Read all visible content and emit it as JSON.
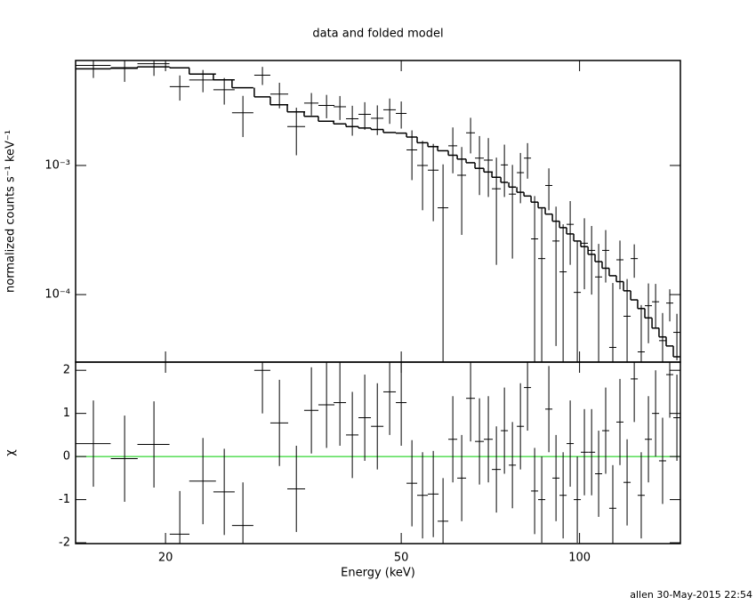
{
  "title": "data and folded model",
  "footer": "allen 30-May-2015 22:54",
  "chart_data": [
    {
      "type": "errorbar",
      "ylabel": "normalized counts s⁻¹ keV⁻¹",
      "xlog": true,
      "ylog": true,
      "xlim": [
        14.1,
        148
      ],
      "ylim": [
        3e-05,
        0.0065
      ],
      "xticks": [
        20,
        50,
        100
      ],
      "yticks": [
        {
          "value": 0.001,
          "label": "10⁻³"
        },
        {
          "value": 0.0001,
          "label": "10⁻⁴"
        }
      ],
      "color": "#000000",
      "model_color": "#000000",
      "x": [
        15.11,
        17.06,
        19.12,
        21.14,
        23.13,
        25.13,
        27.02,
        29.15,
        31.14,
        33.26,
        35.26,
        37.4,
        39.39,
        41.34,
        43.39,
        45.56,
        47.8,
        50,
        52.12,
        54.32,
        56.63,
        58.82,
        61.1,
        63.25,
        65.47,
        67.77,
        70.15,
        72.38,
        74.67,
        77.03,
        79.47,
        81.69,
        83.98,
        86.33,
        88.75,
        91.25,
        93.81,
        96.43,
        99.13,
        101.9,
        104.8,
        107.7,
        110.7,
        113.8,
        117,
        120.3,
        123.7,
        127.1,
        130.7,
        134.4,
        138.1,
        142,
        146
      ],
      "xerr": [
        1.05,
        0.89,
        1.19,
        0.81,
        1.2,
        1.04,
        1.12,
        0.91,
        1.08,
        1.15,
        0.98,
        1.17,
        0.95,
        1,
        1.05,
        1.1,
        1.16,
        1.04,
        1.08,
        1.13,
        1.18,
        1.22,
        1.06,
        1.09,
        1.13,
        1.17,
        1.21,
        1.25,
        1.03,
        1.07,
        1.1,
        1.13,
        1.16,
        1.2,
        1.23,
        1.26,
        1.3,
        1.34,
        1.37,
        1.41,
        1.45,
        1.49,
        1.53,
        1.58,
        1.62,
        1.67,
        1.71,
        1.76,
        1.81,
        1.86,
        1.91,
        1.97,
        2.02
      ],
      "values": [
        0.00596,
        0.00564,
        0.00614,
        0.00408,
        0.00459,
        0.00386,
        0.00256,
        0.005,
        0.00357,
        0.002,
        0.00304,
        0.00292,
        0.00285,
        0.0023,
        0.00249,
        0.00232,
        0.0027,
        0.00253,
        0.00132,
        0.001,
        0.00092,
        0.00047,
        0.00142,
        0.00084,
        0.00179,
        0.00114,
        0.0011,
        0.00066,
        0.00101,
        0.0006,
        0.00088,
        0.00114,
        0.00027,
        0.00019,
        0.0007,
        0.00026,
        0.00015,
        0.00035,
        0.000104,
        0.00025,
        0.00022,
        0.000137,
        0.00022,
        3.9e-05,
        0.000186,
        6.8e-05,
        0.00019,
        3.6e-05,
        8.2e-05,
        8.8e-05,
        4.4e-05,
        8.6e-05,
        5.1e-05
      ],
      "errors": [
        0.0012,
        0.0012,
        0.0012,
        0.0009,
        0.0009,
        0.0009,
        0.0009,
        0.0008,
        0.0008,
        0.0008,
        0.0006,
        0.0006,
        0.0006,
        0.0006,
        0.0006,
        0.0006,
        0.0006,
        0.0006,
        0.00055,
        0.00055,
        0.00055,
        0.00055,
        0.00055,
        0.00055,
        0.00055,
        0.00055,
        0.00053,
        0.00049,
        0.00044,
        0.00041,
        0.00037,
        0.00035,
        0.00031,
        0.00028,
        0.00025,
        0.00022,
        0.0002,
        0.00018,
        0.000156,
        0.00014,
        0.00012,
        0.00011,
        9.6e-05,
        8.4e-05,
        7.6e-05,
        6.4e-05,
        5.5e-05,
        4.7e-05,
        4e-05,
        3.3e-05,
        2.8e-05,
        2.4e-05,
        2e-05
      ],
      "model": [
        0.0056,
        0.0057,
        0.0058,
        0.0057,
        0.0051,
        0.0046,
        0.004,
        0.0034,
        0.00295,
        0.0026,
        0.0024,
        0.0022,
        0.0021,
        0.002,
        0.00195,
        0.0019,
        0.0018,
        0.00178,
        0.00166,
        0.0015,
        0.0014,
        0.0013,
        0.0012,
        0.00112,
        0.00105,
        0.00095,
        0.00089,
        0.00081,
        0.00074,
        0.00068,
        0.00062,
        0.00058,
        0.00052,
        0.00047,
        0.00042,
        0.00037,
        0.00033,
        0.000295,
        0.00026,
        0.000235,
        0.000205,
        0.00018,
        0.00016,
        0.00014,
        0.000126,
        0.000107,
        9.1e-05,
        7.8e-05,
        6.6e-05,
        5.5e-05,
        4.7e-05,
        4e-05,
        3.3e-05
      ]
    },
    {
      "type": "residual",
      "xlabel": "Energy (keV)",
      "ylabel": "χ",
      "xlog": true,
      "xlim": [
        14.1,
        148
      ],
      "ylim": [
        -2.02,
        2.19
      ],
      "xticks": [
        20,
        50,
        100
      ],
      "yticks": [
        -2,
        -1,
        0,
        1,
        2
      ],
      "color": "#000000",
      "reference": 0,
      "reference_color": "#00cc00",
      "x": [
        15.11,
        17.06,
        19.12,
        21.14,
        23.13,
        25.13,
        27.02,
        29.15,
        31.14,
        33.26,
        35.26,
        37.4,
        39.39,
        41.34,
        43.39,
        45.56,
        47.8,
        50,
        52.12,
        54.32,
        56.63,
        58.82,
        61.1,
        63.25,
        65.47,
        67.77,
        70.15,
        72.38,
        74.67,
        77.03,
        79.47,
        81.69,
        83.98,
        86.33,
        88.75,
        91.25,
        93.81,
        96.43,
        99.13,
        101.9,
        104.8,
        107.7,
        110.7,
        113.8,
        117,
        120.3,
        123.7,
        127.1,
        130.7,
        134.4,
        138.1,
        142,
        146
      ],
      "xerr": [
        1.05,
        0.89,
        1.19,
        0.81,
        1.2,
        1.04,
        1.12,
        0.91,
        1.08,
        1.15,
        0.98,
        1.17,
        0.95,
        1,
        1.05,
        1.1,
        1.16,
        1.04,
        1.08,
        1.13,
        1.18,
        1.22,
        1.06,
        1.09,
        1.13,
        1.17,
        1.21,
        1.25,
        1.03,
        1.07,
        1.1,
        1.13,
        1.16,
        1.2,
        1.23,
        1.26,
        1.3,
        1.34,
        1.37,
        1.41,
        1.45,
        1.49,
        1.53,
        1.58,
        1.62,
        1.67,
        1.71,
        1.76,
        1.81,
        1.86,
        1.91,
        1.97,
        2.02
      ],
      "values": [
        0.3,
        -0.05,
        0.28,
        -1.8,
        -0.57,
        -0.82,
        -1.6,
        2,
        0.78,
        -0.75,
        1.07,
        1.2,
        1.25,
        0.5,
        0.9,
        0.7,
        1.5,
        1.25,
        -0.62,
        -0.9,
        -0.87,
        -1.5,
        0.4,
        -0.5,
        1.35,
        0.35,
        0.4,
        -0.3,
        0.6,
        -0.2,
        0.7,
        1.6,
        -0.8,
        -1,
        1.1,
        -0.5,
        -0.9,
        0.3,
        -1,
        0.1,
        0.1,
        -0.4,
        0.6,
        -1.2,
        0.8,
        -0.6,
        1.8,
        -0.9,
        0.4,
        1,
        -0.1,
        1.9,
        0.9
      ],
      "errors": [
        1,
        1,
        1,
        1,
        1,
        1,
        1,
        1,
        1,
        1,
        1,
        1,
        1,
        1,
        1,
        1,
        1,
        1,
        1,
        1,
        1,
        1,
        1,
        1,
        1,
        1,
        1,
        1,
        1,
        1,
        1,
        1,
        1,
        1,
        1,
        1,
        1,
        1,
        1,
        1,
        1,
        1,
        1,
        1,
        1,
        1,
        1,
        1,
        1,
        1,
        1,
        1,
        1
      ]
    }
  ]
}
